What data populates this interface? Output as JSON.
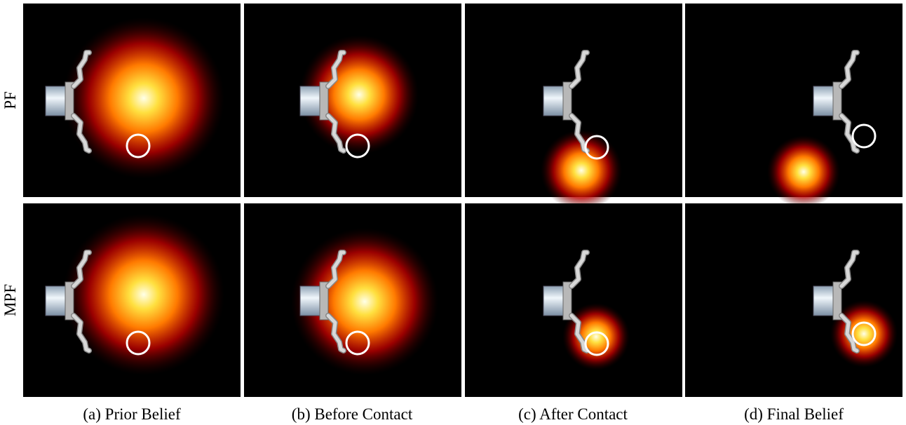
{
  "figure": {
    "row_labels": [
      "PF",
      "MPF"
    ],
    "captions": [
      "(a) Prior Belief",
      "(b) Before Contact",
      "(c) After Contact",
      "(d) Final Belief"
    ]
  }
}
